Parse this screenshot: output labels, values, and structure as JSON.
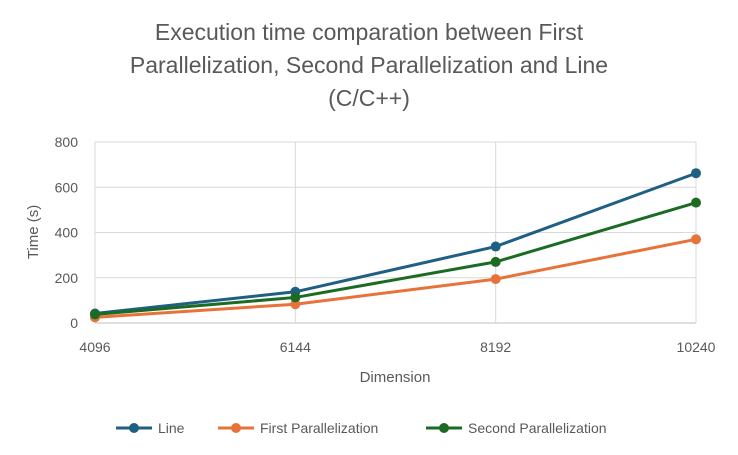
{
  "chart_data": {
    "type": "line",
    "title_lines": [
      "Execution time comparation between First",
      "Parallelization, Second Parallelization and Line",
      "(C/C++)"
    ],
    "xlabel": "Dimension",
    "ylabel": "Time (s)",
    "x": [
      4096,
      6144,
      8192,
      10240
    ],
    "x_tick_labels": [
      "4096",
      "6144",
      "8192",
      "10240"
    ],
    "ylim": [
      0,
      800
    ],
    "y_ticks": [
      0,
      200,
      400,
      600,
      800
    ],
    "grid": "on",
    "legend_position": "bottom",
    "series": [
      {
        "name": "Line",
        "color": "#1f5f84",
        "values": [
          42,
          138,
          338,
          662
        ]
      },
      {
        "name": "First Parallelization",
        "color": "#e8733a",
        "values": [
          25,
          83,
          194,
          370
        ]
      },
      {
        "name": "Second Parallelization",
        "color": "#1c6b23",
        "values": [
          38,
          113,
          270,
          532
        ]
      }
    ]
  }
}
